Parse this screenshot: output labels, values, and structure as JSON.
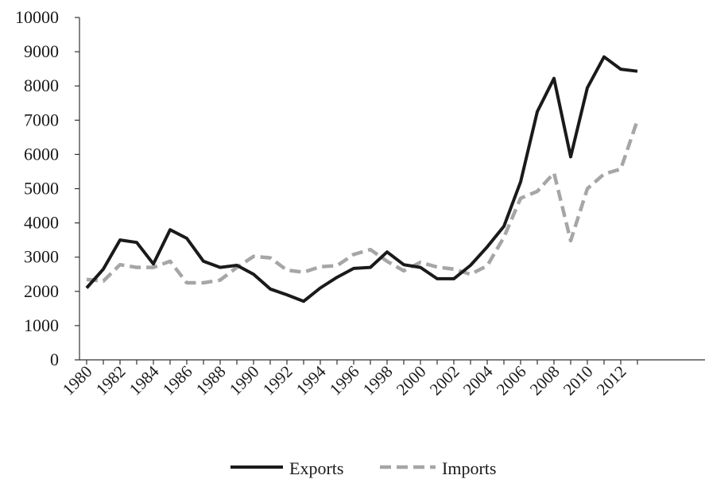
{
  "chart_data": {
    "type": "line",
    "x": [
      1980,
      1981,
      1982,
      1983,
      1984,
      1985,
      1986,
      1987,
      1988,
      1989,
      1990,
      1991,
      1992,
      1993,
      1994,
      1995,
      1996,
      1997,
      1998,
      1999,
      2000,
      2001,
      2002,
      2003,
      2004,
      2005,
      2006,
      2007,
      2008,
      2009,
      2010,
      2011,
      2012,
      2013
    ],
    "x_tick_labels": [
      "1980",
      "1982",
      "1984",
      "1986",
      "1988",
      "1990",
      "1992",
      "1994",
      "1996",
      "1998",
      "2000",
      "2002",
      "2004",
      "2006",
      "2008",
      "2010",
      "2012"
    ],
    "y_tick_labels": [
      "0",
      "1000",
      "2000",
      "3000",
      "4000",
      "5000",
      "6000",
      "7000",
      "8000",
      "9000",
      "10000"
    ],
    "ylim": [
      0,
      10000
    ],
    "series": [
      {
        "name": "Exports",
        "color": "#1a1a1a",
        "dash": "solid",
        "values": [
          2100,
          2650,
          3500,
          3430,
          2800,
          3800,
          3550,
          2880,
          2700,
          2760,
          2500,
          2070,
          1900,
          1710,
          2100,
          2410,
          2670,
          2700,
          3150,
          2780,
          2700,
          2370,
          2370,
          2760,
          3300,
          3900,
          5200,
          7250,
          8220,
          5930,
          7950,
          8850,
          8490,
          8430
        ]
      },
      {
        "name": "Imports",
        "color": "#a6a6a6",
        "dash": "dashed",
        "values": [
          2350,
          2300,
          2780,
          2700,
          2700,
          2880,
          2250,
          2250,
          2330,
          2700,
          3020,
          2980,
          2620,
          2560,
          2720,
          2750,
          3080,
          3220,
          2880,
          2600,
          2850,
          2710,
          2650,
          2500,
          2750,
          3580,
          4720,
          4920,
          5460,
          3480,
          5000,
          5430,
          5570,
          7000
        ]
      }
    ],
    "grid": false,
    "legend_position": "bottom-center",
    "title": "",
    "xlabel": "",
    "ylabel": ""
  }
}
